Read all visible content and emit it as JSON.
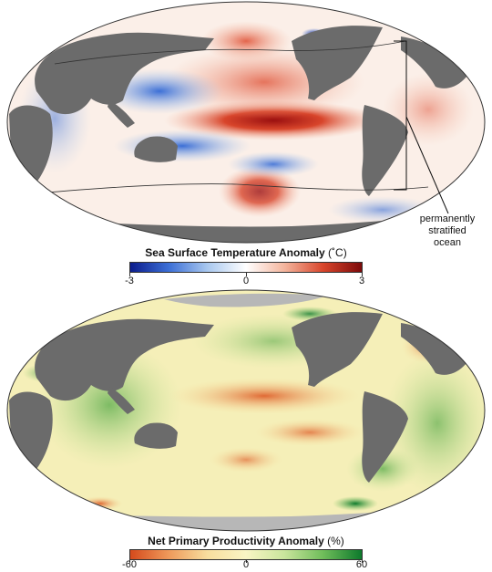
{
  "sst": {
    "title": "Sea Surface Temperature Anomaly",
    "unit": "(˚C)",
    "ticks": [
      "-3",
      "0",
      "3"
    ],
    "colors": [
      "#0b1c8c",
      "#3c6fd6",
      "#a9c8ef",
      "#ffffff",
      "#f4b59d",
      "#d8452b",
      "#7d0a0a"
    ],
    "callout": "permanently stratified ocean"
  },
  "npp": {
    "title": "Net Primary Productivity Anomaly",
    "unit": "(%)",
    "ticks": [
      "-60",
      "0",
      "60"
    ],
    "colors": [
      "#d44a1c",
      "#ef9a5b",
      "#f8de9e",
      "#f9f5c4",
      "#c9e59c",
      "#6fbd5a",
      "#0d7a2c"
    ]
  },
  "palette": {
    "land": "#6b6b6b",
    "ice": "#b7b7b7",
    "outline": "#333333"
  }
}
